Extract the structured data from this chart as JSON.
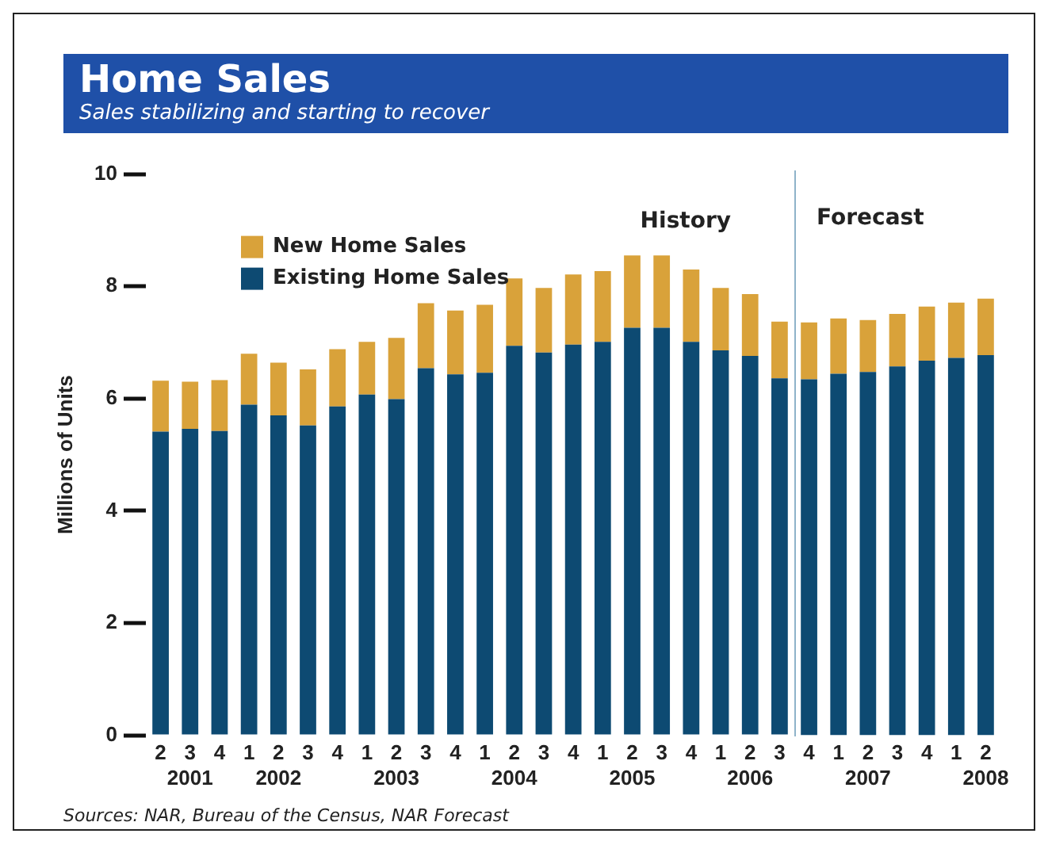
{
  "chart_data": [
    {
      "type": "bar",
      "title": "Home Sales",
      "subtitle": "Sales stabilizing and starting to recover",
      "ylabel": "Millions of Units",
      "categories": [
        "2",
        "3\n2001",
        "4",
        "1",
        "2\n2002",
        "3",
        "4",
        "1",
        "2\n2003",
        "3",
        "4",
        "1",
        "2\n2004",
        "3",
        "4",
        "1",
        "2\n2005",
        "3",
        "4",
        "1",
        "2\n2006",
        "3"
      ],
      "stacked": true,
      "series": [
        {
          "name": "Existing Home Sales",
          "color": "#0d4a72",
          "values": [
            5.41,
            5.46,
            5.42,
            5.89,
            5.7,
            5.52,
            5.86,
            6.07,
            5.99,
            6.54,
            6.43,
            6.46,
            6.94,
            6.82,
            6.96,
            7.01,
            7.26,
            7.26,
            7.01,
            6.86,
            6.76,
            6.36
          ]
        },
        {
          "name": "New Home Sales",
          "color": "#d9a23a",
          "values": [
            0.91,
            0.84,
            0.91,
            0.91,
            0.94,
            1.0,
            1.02,
            0.94,
            1.09,
            1.16,
            1.14,
            1.21,
            1.2,
            1.15,
            1.25,
            1.26,
            1.29,
            1.29,
            1.29,
            1.11,
            1.1,
            1.01
          ]
        }
      ],
      "ylim": [
        0,
        10
      ],
      "yticks": [
        0,
        2,
        4,
        6,
        8,
        10
      ],
      "grid": false,
      "legend": "top left",
      "annotations": [
        "History",
        "Sources: NAR, Bureau of the Census, NAR Forecast"
      ]
    },
    {
      "type": "bar",
      "categories": [
        "4",
        "1",
        "2\n2007",
        "3",
        "4",
        "1",
        "2\n2008"
      ],
      "stacked": true,
      "series": [
        {
          "color": "#0d4a72",
          "values": [
            6.31,
            6.41,
            6.44,
            6.54,
            6.64,
            6.69,
            6.74
          ]
        },
        {
          "color": "#d9a23a",
          "values": [
            1.01,
            0.98,
            0.92,
            0.93,
            0.96,
            0.98,
            1.0
          ]
        }
      ],
      "ylim": [
        0,
        10
      ],
      "grid": false,
      "tick_labels": "x",
      "annotations": [
        "Forecast"
      ]
    }
  ]
}
